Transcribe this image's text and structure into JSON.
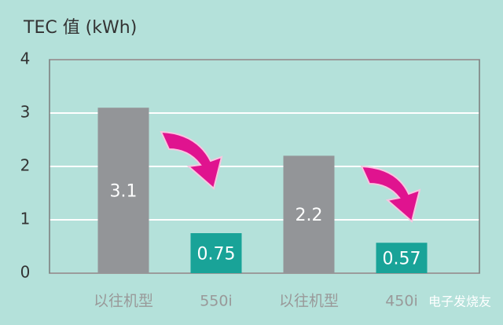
{
  "chart_data": {
    "type": "bar",
    "title": "TEC 值 (kWh)",
    "categories": [
      "以往机型",
      "550i",
      "以往机型",
      "450i"
    ],
    "values": [
      3.1,
      0.75,
      2.2,
      0.57
    ],
    "colors": [
      "#939598",
      "#19a398",
      "#939598",
      "#19a398"
    ],
    "ylim": [
      0,
      4
    ],
    "yticks": [
      0,
      1,
      2,
      3,
      4
    ],
    "grid": true,
    "watermark": "电子发烧友"
  }
}
